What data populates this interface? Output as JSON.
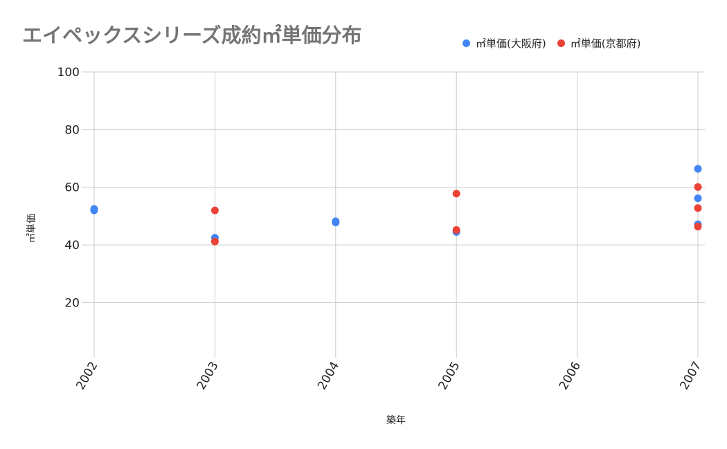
{
  "chart_data": {
    "type": "scatter",
    "title": "エイペックスシリーズ成約㎡単価分布",
    "xlabel": "築年",
    "ylabel": "㎡単価",
    "x_ticks": [
      "2002",
      "2003",
      "2004",
      "2005",
      "2006",
      "2007"
    ],
    "y_ticks": [
      20,
      40,
      60,
      80,
      100
    ],
    "ylim": [
      2.6,
      100
    ],
    "grid": true,
    "legend_position": "top-right",
    "series": [
      {
        "name": "㎡単価(大阪府)",
        "color": "#4285f4",
        "points": [
          {
            "x": 2002,
            "y": 52.5
          },
          {
            "x": 2002,
            "y": 52.0
          },
          {
            "x": 2003,
            "y": 42.5
          },
          {
            "x": 2004,
            "y": 48.2
          },
          {
            "x": 2004,
            "y": 47.8
          },
          {
            "x": 2005,
            "y": 44.5
          },
          {
            "x": 2007,
            "y": 66.4
          },
          {
            "x": 2007,
            "y": 56.2
          },
          {
            "x": 2007,
            "y": 47.2
          }
        ]
      },
      {
        "name": "㎡単価(京都府)",
        "color": "#ea4335",
        "points": [
          {
            "x": 2003,
            "y": 52.0
          },
          {
            "x": 2003,
            "y": 41.2
          },
          {
            "x": 2005,
            "y": 57.8
          },
          {
            "x": 2005,
            "y": 45.2
          },
          {
            "x": 2007,
            "y": 60.1
          },
          {
            "x": 2007,
            "y": 52.8
          },
          {
            "x": 2007,
            "y": 46.4
          }
        ]
      }
    ]
  },
  "legend": {
    "items": [
      {
        "label": "㎡単価(大阪府)",
        "color": "#4285f4"
      },
      {
        "label": "㎡単価(京都府)",
        "color": "#ea4335"
      }
    ]
  }
}
